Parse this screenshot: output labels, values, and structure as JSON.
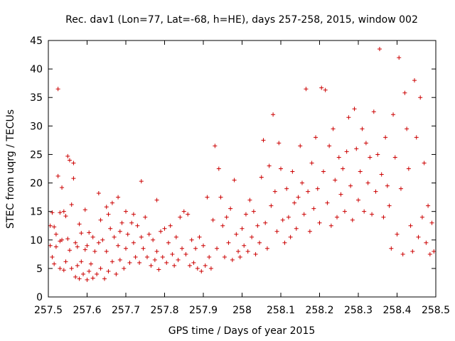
{
  "chart_data": {
    "type": "scatter",
    "title": "Rec. dav1 (Lon=77, Lat=-68, h=HE), days 257-258, 2015, window 002",
    "xlabel": "GPS time / Days of year 2015",
    "ylabel": "STEC from uqrg / TECUs",
    "xlim": [
      257.5,
      258.5
    ],
    "ylim": [
      0,
      45
    ],
    "xticks": [
      "257.5",
      "257.6",
      "257.7",
      "257.8",
      "257.9",
      "258",
      "258.1",
      "258.2",
      "258.3",
      "258.4",
      "258.5"
    ],
    "yticks": [
      "0",
      "5",
      "10",
      "15",
      "20",
      "25",
      "30",
      "35",
      "40",
      "45"
    ],
    "grid": false,
    "marker": "+",
    "color": "#cc0000",
    "series": [
      {
        "points": [
          [
            257.505,
            12.5
          ],
          [
            257.505,
            9.0
          ],
          [
            257.51,
            14.8
          ],
          [
            257.51,
            7.0
          ],
          [
            257.515,
            12.3
          ],
          [
            257.515,
            5.8
          ],
          [
            257.52,
            11.0
          ],
          [
            257.52,
            8.8
          ],
          [
            257.525,
            36.5
          ],
          [
            257.525,
            21.2
          ],
          [
            257.53,
            14.8
          ],
          [
            257.53,
            9.8
          ],
          [
            257.53,
            5.0
          ],
          [
            257.535,
            19.2
          ],
          [
            257.535,
            10.0
          ],
          [
            257.54,
            15.0
          ],
          [
            257.54,
            4.7
          ],
          [
            257.545,
            14.2
          ],
          [
            257.545,
            6.2
          ],
          [
            257.55,
            24.7
          ],
          [
            257.55,
            10.2
          ],
          [
            257.555,
            24.0
          ],
          [
            257.555,
            8.2
          ],
          [
            257.56,
            16.2
          ],
          [
            257.56,
            5.0
          ],
          [
            257.565,
            23.5
          ],
          [
            257.565,
            20.8
          ],
          [
            257.57,
            9.5
          ],
          [
            257.57,
            3.5
          ],
          [
            257.575,
            8.8
          ],
          [
            257.575,
            5.5
          ],
          [
            257.58,
            12.8
          ],
          [
            257.58,
            3.2
          ],
          [
            257.585,
            11.2
          ],
          [
            257.585,
            6.2
          ],
          [
            257.59,
            4.0
          ],
          [
            257.595,
            15.3
          ],
          [
            257.595,
            8.3
          ],
          [
            257.6,
            9.0
          ],
          [
            257.6,
            3.0
          ],
          [
            257.605,
            11.3
          ],
          [
            257.605,
            4.5
          ],
          [
            257.61,
            5.8
          ],
          [
            257.615,
            10.5
          ],
          [
            257.615,
            3.3
          ],
          [
            257.62,
            8.0
          ],
          [
            257.625,
            4.0
          ],
          [
            257.63,
            18.2
          ],
          [
            257.63,
            9.5
          ],
          [
            257.635,
            13.5
          ],
          [
            257.635,
            5.0
          ],
          [
            257.64,
            10.0
          ],
          [
            257.645,
            3.2
          ],
          [
            257.65,
            15.8
          ],
          [
            257.65,
            8.0
          ],
          [
            257.655,
            14.5
          ],
          [
            257.655,
            4.5
          ],
          [
            257.66,
            12.0
          ],
          [
            257.665,
            16.5
          ],
          [
            257.665,
            6.2
          ],
          [
            257.67,
            10.5
          ],
          [
            257.675,
            4.0
          ],
          [
            257.68,
            17.5
          ],
          [
            257.68,
            9.0
          ],
          [
            257.685,
            11.5
          ],
          [
            257.685,
            6.5
          ],
          [
            257.69,
            13.0
          ],
          [
            257.695,
            5.0
          ],
          [
            257.7,
            15.0
          ],
          [
            257.7,
            8.5
          ],
          [
            257.705,
            11.0
          ],
          [
            257.71,
            6.0
          ],
          [
            257.715,
            13.0
          ],
          [
            257.72,
            14.5
          ],
          [
            257.72,
            9.5
          ],
          [
            257.725,
            7.0
          ],
          [
            257.73,
            12.5
          ],
          [
            257.735,
            6.0
          ],
          [
            257.74,
            20.3
          ],
          [
            257.74,
            10.5
          ],
          [
            257.745,
            8.5
          ],
          [
            257.75,
            14.0
          ],
          [
            257.755,
            7.0
          ],
          [
            257.76,
            11.0
          ],
          [
            257.765,
            5.5
          ],
          [
            257.77,
            10.0
          ],
          [
            257.775,
            6.5
          ],
          [
            257.78,
            17.0
          ],
          [
            257.78,
            8.0
          ],
          [
            257.785,
            4.8
          ],
          [
            257.79,
            11.5
          ],
          [
            257.795,
            7.0
          ],
          [
            257.8,
            12.0
          ],
          [
            257.805,
            6.0
          ],
          [
            257.81,
            9.5
          ],
          [
            257.815,
            12.5
          ],
          [
            257.82,
            7.5
          ],
          [
            257.825,
            5.5
          ],
          [
            257.83,
            10.5
          ],
          [
            257.835,
            6.5
          ],
          [
            257.84,
            14.0
          ],
          [
            257.845,
            8.5
          ],
          [
            257.85,
            15.0
          ],
          [
            257.855,
            7.5
          ],
          [
            257.86,
            14.5
          ],
          [
            257.865,
            5.5
          ],
          [
            257.87,
            10.0
          ],
          [
            257.875,
            6.0
          ],
          [
            257.88,
            8.5
          ],
          [
            257.885,
            5.0
          ],
          [
            257.89,
            10.5
          ],
          [
            257.895,
            4.5
          ],
          [
            257.9,
            9.0
          ],
          [
            257.905,
            5.5
          ],
          [
            257.91,
            17.5
          ],
          [
            257.915,
            7.0
          ],
          [
            257.92,
            5.0
          ],
          [
            257.925,
            13.5
          ],
          [
            257.93,
            26.5
          ],
          [
            257.935,
            8.5
          ],
          [
            257.94,
            22.5
          ],
          [
            257.945,
            17.5
          ],
          [
            257.95,
            12.5
          ],
          [
            257.955,
            7.0
          ],
          [
            257.96,
            14.0
          ],
          [
            257.965,
            9.5
          ],
          [
            257.97,
            15.5
          ],
          [
            257.975,
            6.5
          ],
          [
            257.98,
            20.5
          ],
          [
            257.985,
            11.0
          ],
          [
            257.99,
            8.0
          ],
          [
            257.995,
            7.0
          ],
          [
            258.0,
            12.0
          ],
          [
            258.005,
            9.0
          ],
          [
            258.01,
            14.5
          ],
          [
            258.015,
            8.0
          ],
          [
            258.02,
            17.0
          ],
          [
            258.025,
            10.5
          ],
          [
            258.03,
            15.0
          ],
          [
            258.035,
            7.5
          ],
          [
            258.04,
            12.5
          ],
          [
            258.045,
            9.5
          ],
          [
            258.05,
            21.0
          ],
          [
            258.055,
            27.5
          ],
          [
            258.06,
            13.0
          ],
          [
            258.065,
            8.5
          ],
          [
            258.07,
            23.0
          ],
          [
            258.075,
            16.0
          ],
          [
            258.08,
            32.0
          ],
          [
            258.085,
            18.5
          ],
          [
            258.09,
            11.5
          ],
          [
            258.095,
            27.0
          ],
          [
            258.1,
            22.5
          ],
          [
            258.105,
            13.5
          ],
          [
            258.11,
            9.5
          ],
          [
            258.115,
            19.0
          ],
          [
            258.12,
            14.0
          ],
          [
            258.125,
            10.5
          ],
          [
            258.13,
            22.0
          ],
          [
            258.135,
            16.5
          ],
          [
            258.14,
            12.0
          ],
          [
            258.145,
            17.5
          ],
          [
            258.15,
            26.5
          ],
          [
            258.155,
            20.0
          ],
          [
            258.16,
            14.5
          ],
          [
            258.165,
            36.5
          ],
          [
            258.17,
            18.5
          ],
          [
            258.175,
            11.5
          ],
          [
            258.18,
            23.5
          ],
          [
            258.185,
            15.5
          ],
          [
            258.19,
            28.0
          ],
          [
            258.195,
            19.0
          ],
          [
            258.2,
            13.0
          ],
          [
            258.205,
            36.7
          ],
          [
            258.21,
            22.0
          ],
          [
            258.215,
            36.3
          ],
          [
            258.22,
            16.5
          ],
          [
            258.225,
            26.5
          ],
          [
            258.23,
            12.5
          ],
          [
            258.235,
            29.5
          ],
          [
            258.24,
            20.5
          ],
          [
            258.245,
            14.0
          ],
          [
            258.25,
            24.5
          ],
          [
            258.255,
            18.0
          ],
          [
            258.26,
            22.5
          ],
          [
            258.265,
            15.0
          ],
          [
            258.27,
            25.5
          ],
          [
            258.275,
            31.5
          ],
          [
            258.28,
            19.5
          ],
          [
            258.285,
            13.5
          ],
          [
            258.29,
            33.0
          ],
          [
            258.295,
            26.0
          ],
          [
            258.3,
            17.0
          ],
          [
            258.305,
            22.0
          ],
          [
            258.31,
            29.5
          ],
          [
            258.315,
            15.0
          ],
          [
            258.32,
            27.0
          ],
          [
            258.325,
            20.0
          ],
          [
            258.33,
            24.5
          ],
          [
            258.335,
            14.5
          ],
          [
            258.34,
            32.5
          ],
          [
            258.345,
            18.5
          ],
          [
            258.35,
            25.0
          ],
          [
            258.355,
            43.5
          ],
          [
            258.36,
            21.5
          ],
          [
            258.365,
            14.0
          ],
          [
            258.37,
            28.0
          ],
          [
            258.375,
            19.5
          ],
          [
            258.38,
            16.0
          ],
          [
            258.385,
            8.5
          ],
          [
            258.39,
            32.0
          ],
          [
            258.395,
            24.5
          ],
          [
            258.4,
            11.0
          ],
          [
            258.405,
            42.0
          ],
          [
            258.41,
            19.0
          ],
          [
            258.415,
            7.5
          ],
          [
            258.42,
            35.8
          ],
          [
            258.425,
            29.5
          ],
          [
            258.43,
            22.5
          ],
          [
            258.435,
            12.5
          ],
          [
            258.44,
            8.0
          ],
          [
            258.445,
            38.0
          ],
          [
            258.45,
            28.0
          ],
          [
            258.455,
            10.5
          ],
          [
            258.46,
            35.0
          ],
          [
            258.465,
            14.0
          ],
          [
            258.47,
            23.5
          ],
          [
            258.475,
            9.5
          ],
          [
            258.48,
            16.0
          ],
          [
            258.485,
            7.5
          ],
          [
            258.49,
            13.0
          ],
          [
            258.495,
            8.0
          ]
        ]
      }
    ]
  }
}
